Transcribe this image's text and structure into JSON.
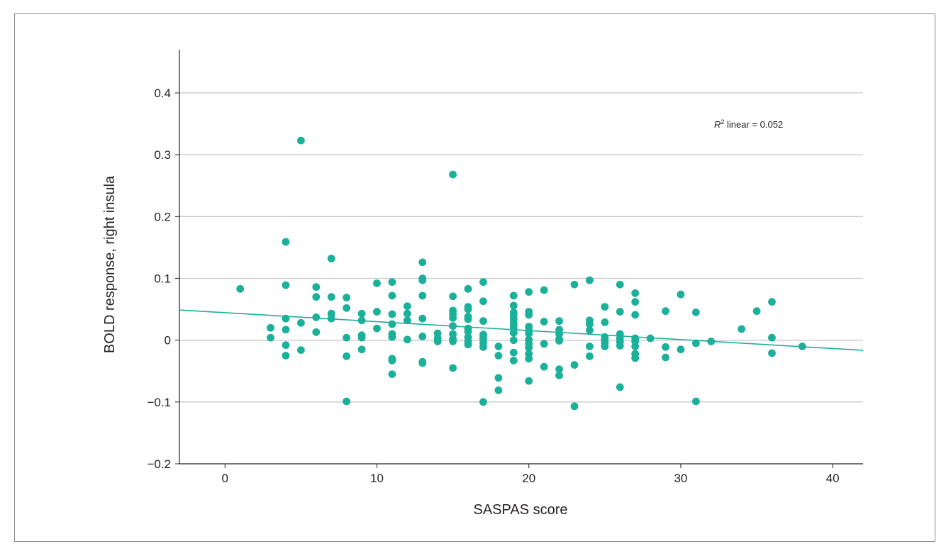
{
  "chart_data": {
    "type": "scatter",
    "title": "",
    "xlabel": "SASPAS score",
    "ylabel": "BOLD response, right insula",
    "xlim": [
      -3,
      42
    ],
    "ylim": [
      -0.2,
      0.47
    ],
    "xticks": [
      0,
      10,
      20,
      30,
      40
    ],
    "yticks": [
      -0.2,
      -0.1,
      0,
      0.1,
      0.2,
      0.3,
      0.4
    ],
    "xtick_labels": [
      "0",
      "10",
      "20",
      "30",
      "40"
    ],
    "ytick_labels": [
      "−0.2",
      "−0.1",
      "0",
      "0.1",
      "0.2",
      "0.3",
      "0.4"
    ],
    "grid": "horizontal",
    "point_color": "#1ab09a",
    "fit_line": {
      "type": "linear",
      "intercept": 0.0445,
      "slope": -0.00145,
      "color": "#1ab09a"
    },
    "annotation": {
      "italic": "R",
      "superscript": "2",
      "text": " linear = 0.052"
    },
    "points": [
      [
        1,
        0.083
      ],
      [
        3,
        0.02
      ],
      [
        3,
        0.004
      ],
      [
        4,
        0.159
      ],
      [
        4,
        0.089
      ],
      [
        4,
        0.035
      ],
      [
        4,
        0.017
      ],
      [
        4,
        -0.008
      ],
      [
        4,
        -0.025
      ],
      [
        5,
        0.323
      ],
      [
        5,
        0.028
      ],
      [
        5,
        -0.016
      ],
      [
        6,
        0.086
      ],
      [
        6,
        0.07
      ],
      [
        6,
        0.037
      ],
      [
        6,
        0.013
      ],
      [
        7,
        0.132
      ],
      [
        7,
        0.07
      ],
      [
        7,
        0.043
      ],
      [
        7,
        0.035
      ],
      [
        8,
        0.069
      ],
      [
        8,
        0.052
      ],
      [
        8,
        0.004
      ],
      [
        8,
        -0.026
      ],
      [
        8,
        -0.099
      ],
      [
        9,
        0.043
      ],
      [
        9,
        0.032
      ],
      [
        9,
        0.008
      ],
      [
        9,
        0.004
      ],
      [
        9,
        -0.015
      ],
      [
        10,
        0.092
      ],
      [
        10,
        0.046
      ],
      [
        10,
        0.019
      ],
      [
        11,
        0.094
      ],
      [
        11,
        0.072
      ],
      [
        11,
        0.042
      ],
      [
        11,
        0.026
      ],
      [
        11,
        0.01
      ],
      [
        11,
        0.005
      ],
      [
        11,
        -0.03
      ],
      [
        11,
        -0.033
      ],
      [
        11,
        -0.055
      ],
      [
        12,
        0.055
      ],
      [
        12,
        0.043
      ],
      [
        12,
        0.032
      ],
      [
        12,
        0.001
      ],
      [
        13,
        0.126
      ],
      [
        13,
        0.1
      ],
      [
        13,
        0.097
      ],
      [
        13,
        0.072
      ],
      [
        13,
        0.035
      ],
      [
        13,
        0.006
      ],
      [
        13,
        -0.035
      ],
      [
        13,
        -0.037
      ],
      [
        14,
        0.011
      ],
      [
        14,
        0.003
      ],
      [
        14,
        -0.002
      ],
      [
        15,
        0.268
      ],
      [
        15,
        0.071
      ],
      [
        15,
        0.048
      ],
      [
        15,
        0.042
      ],
      [
        15,
        0.036
      ],
      [
        15,
        0.023
      ],
      [
        15,
        0.01
      ],
      [
        15,
        0.002
      ],
      [
        15,
        -0.002
      ],
      [
        15,
        -0.045
      ],
      [
        16,
        0.083
      ],
      [
        16,
        0.054
      ],
      [
        16,
        0.05
      ],
      [
        16,
        0.038
      ],
      [
        16,
        0.034
      ],
      [
        16,
        0.019
      ],
      [
        16,
        0.014
      ],
      [
        16,
        0.005
      ],
      [
        16,
        -0.002
      ],
      [
        16,
        -0.007
      ],
      [
        17,
        0.094
      ],
      [
        17,
        0.063
      ],
      [
        17,
        0.031
      ],
      [
        17,
        0.009
      ],
      [
        17,
        0.004
      ],
      [
        17,
        0.001
      ],
      [
        17,
        -0.005
      ],
      [
        17,
        -0.011
      ],
      [
        17,
        -0.1
      ],
      [
        18,
        -0.01
      ],
      [
        18,
        -0.025
      ],
      [
        18,
        -0.061
      ],
      [
        18,
        -0.081
      ],
      [
        19,
        0.072
      ],
      [
        19,
        0.056
      ],
      [
        19,
        0.045
      ],
      [
        19,
        0.04
      ],
      [
        19,
        0.034
      ],
      [
        19,
        0.028
      ],
      [
        19,
        0.024
      ],
      [
        19,
        0.019
      ],
      [
        19,
        0.012
      ],
      [
        19,
        0.0
      ],
      [
        19,
        -0.02
      ],
      [
        19,
        -0.033
      ],
      [
        20,
        0.078
      ],
      [
        20,
        0.046
      ],
      [
        20,
        0.041
      ],
      [
        20,
        0.022
      ],
      [
        20,
        0.016
      ],
      [
        20,
        0.011
      ],
      [
        20,
        0.001
      ],
      [
        20,
        -0.005
      ],
      [
        20,
        -0.012
      ],
      [
        20,
        -0.022
      ],
      [
        20,
        -0.03
      ],
      [
        20,
        -0.066
      ],
      [
        21,
        0.081
      ],
      [
        21,
        0.03
      ],
      [
        21,
        -0.006
      ],
      [
        21,
        -0.043
      ],
      [
        22,
        0.031
      ],
      [
        22,
        0.017
      ],
      [
        22,
        0.01
      ],
      [
        22,
        0.002
      ],
      [
        22,
        -0.001
      ],
      [
        22,
        -0.047
      ],
      [
        22,
        -0.057
      ],
      [
        23,
        0.09
      ],
      [
        23,
        -0.04
      ],
      [
        23,
        -0.107
      ],
      [
        24,
        0.097
      ],
      [
        24,
        0.032
      ],
      [
        24,
        0.026
      ],
      [
        24,
        0.016
      ],
      [
        24,
        -0.01
      ],
      [
        24,
        -0.026
      ],
      [
        25,
        0.054
      ],
      [
        25,
        0.029
      ],
      [
        25,
        0.005
      ],
      [
        25,
        0.001
      ],
      [
        25,
        -0.004
      ],
      [
        25,
        -0.01
      ],
      [
        26,
        0.09
      ],
      [
        26,
        0.046
      ],
      [
        26,
        0.01
      ],
      [
        26,
        0.003
      ],
      [
        26,
        -0.003
      ],
      [
        26,
        -0.009
      ],
      [
        26,
        -0.076
      ],
      [
        27,
        0.076
      ],
      [
        27,
        0.062
      ],
      [
        27,
        0.041
      ],
      [
        27,
        0.003
      ],
      [
        27,
        -0.002
      ],
      [
        27,
        -0.01
      ],
      [
        27,
        -0.022
      ],
      [
        27,
        -0.029
      ],
      [
        28,
        0.003
      ],
      [
        29,
        0.047
      ],
      [
        29,
        -0.011
      ],
      [
        29,
        -0.028
      ],
      [
        30,
        0.074
      ],
      [
        30,
        -0.015
      ],
      [
        31,
        0.045
      ],
      [
        31,
        -0.005
      ],
      [
        31,
        -0.099
      ],
      [
        32,
        -0.002
      ],
      [
        34,
        0.018
      ],
      [
        35,
        0.047
      ],
      [
        36,
        0.062
      ],
      [
        36,
        0.004
      ],
      [
        36,
        -0.021
      ],
      [
        38,
        -0.01
      ]
    ]
  }
}
